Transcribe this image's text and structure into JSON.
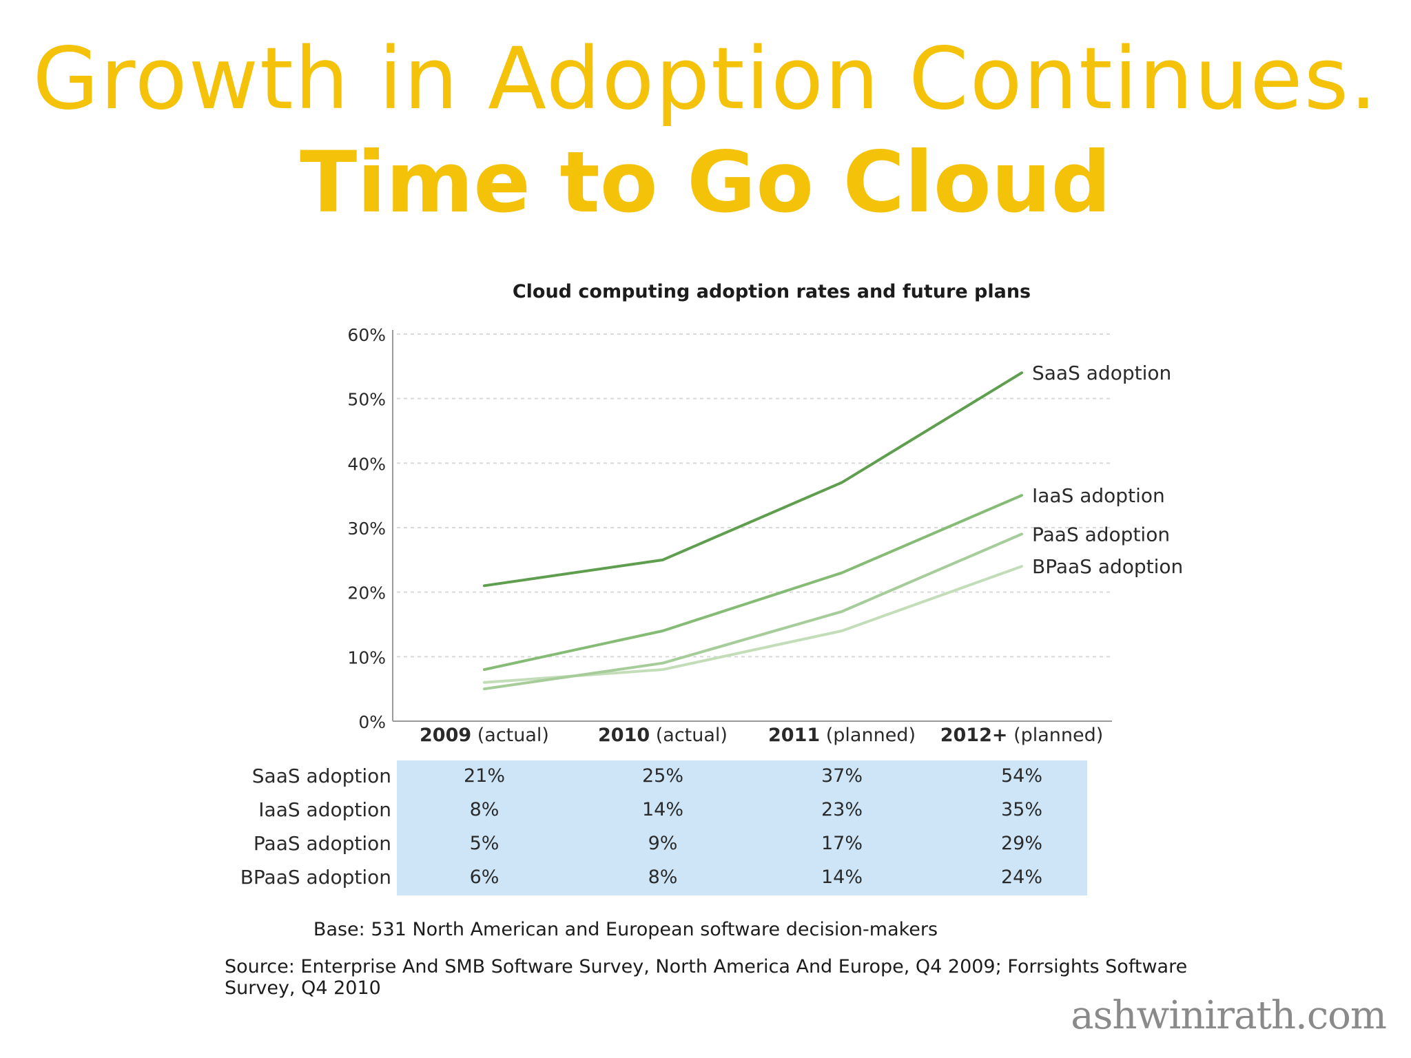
{
  "slide": {
    "title_line1": "Growth in Adoption Continues.",
    "title_line2": "Time to Go Cloud",
    "watermark": "ashwinirath.com"
  },
  "chart_data": {
    "type": "line",
    "title": "Cloud computing adoption rates and future plans",
    "categories": [
      {
        "year": "2009",
        "note": "(actual)"
      },
      {
        "year": "2010",
        "note": "(actual)"
      },
      {
        "year": "2011",
        "note": "(planned)"
      },
      {
        "year": "2012+",
        "note": "(planned)"
      }
    ],
    "y_ticks": [
      "0%",
      "10%",
      "20%",
      "30%",
      "40%",
      "50%",
      "60%"
    ],
    "ylim": [
      0,
      60
    ],
    "grid": true,
    "series": [
      {
        "name": "SaaS adoption",
        "values": [
          21,
          25,
          37,
          54
        ],
        "table": [
          "21%",
          "25%",
          "37%",
          "54%"
        ],
        "color": "#5f9e4e"
      },
      {
        "name": "IaaS adoption",
        "values": [
          8,
          14,
          23,
          35
        ],
        "table": [
          "8%",
          "14%",
          "23%",
          "35%"
        ],
        "color": "#86bb76"
      },
      {
        "name": "PaaS adoption",
        "values": [
          5,
          9,
          17,
          29
        ],
        "table": [
          "5%",
          "9%",
          "17%",
          "29%"
        ],
        "color": "#a6cc9a"
      },
      {
        "name": "BPaaS adoption",
        "values": [
          6,
          8,
          14,
          24
        ],
        "table": [
          "6%",
          "8%",
          "14%",
          "24%"
        ],
        "color": "#c3ddb9"
      }
    ],
    "table_color": "#cde5f7",
    "base": "Base: 531 North American and European software decision-makers",
    "source": "Source: Enterprise And SMB Software Survey, North America And Europe, Q4 2009; Forrsights Software Survey, Q4 2010"
  }
}
